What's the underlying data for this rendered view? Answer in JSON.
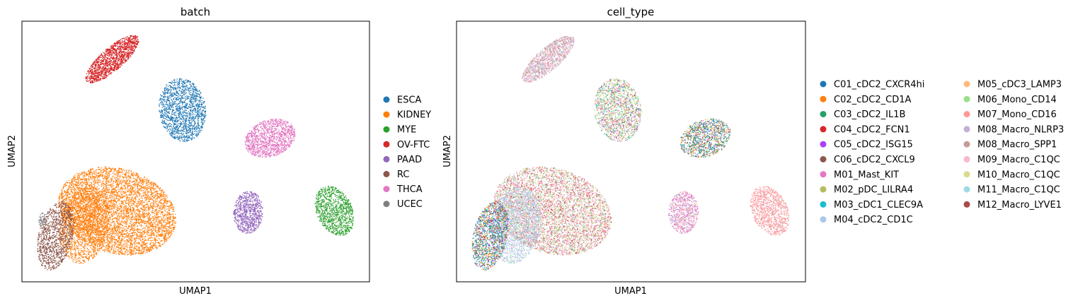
{
  "chart_data": [
    {
      "type": "scatter",
      "title": "batch",
      "xlabel": "UMAP1",
      "ylabel": "UMAP2",
      "xticks": [],
      "yticks": [],
      "grid": false,
      "legend_position": "right",
      "legend_columns": 1,
      "legend": [
        {
          "label": "ESCA",
          "color": "#1f77b4"
        },
        {
          "label": "KIDNEY",
          "color": "#ff7f0e"
        },
        {
          "label": "MYE",
          "color": "#2ca02c"
        },
        {
          "label": "OV-FTC",
          "color": "#d62728"
        },
        {
          "label": "PAAD",
          "color": "#9467bd"
        },
        {
          "label": "RC",
          "color": "#8c564b"
        },
        {
          "label": "THCA",
          "color": "#e377c2"
        },
        {
          "label": "UCEC",
          "color": "#7f7f7f"
        }
      ]
    },
    {
      "type": "scatter",
      "title": "cell_type",
      "xlabel": "UMAP1",
      "ylabel": "UMAP2",
      "xticks": [],
      "yticks": [],
      "grid": false,
      "legend_position": "right",
      "legend_columns": 2,
      "legend": [
        {
          "label": "C01_cDC2_CXCR4hi",
          "color": "#1f77b4"
        },
        {
          "label": "C02_cDC2_CD1A",
          "color": "#ff7f0e"
        },
        {
          "label": "C03_cDC2_IL1B",
          "color": "#279e68"
        },
        {
          "label": "C04_cDC2_FCN1",
          "color": "#d62728"
        },
        {
          "label": "C05_cDC2_ISG15",
          "color": "#aa40fc"
        },
        {
          "label": "C06_cDC2_CXCL9",
          "color": "#8c564b"
        },
        {
          "label": "M01_Mast_KIT",
          "color": "#e377c2"
        },
        {
          "label": "M02_pDC_LILRA4",
          "color": "#b5bd61"
        },
        {
          "label": "M03_cDC1_CLEC9A",
          "color": "#17becf"
        },
        {
          "label": "M04_cDC2_CD1C",
          "color": "#aec7e8"
        },
        {
          "label": "M05_cDC3_LAMP3",
          "color": "#ffbb78"
        },
        {
          "label": "M06_Mono_CD14",
          "color": "#98df8a"
        },
        {
          "label": "M07_Mono_CD16",
          "color": "#ff9896"
        },
        {
          "label": "M08_Macro_NLRP3",
          "color": "#c5b0d5"
        },
        {
          "label": "M08_Macro_SPP1",
          "color": "#c49c94"
        },
        {
          "label": "M09_Macro_C1QC",
          "color": "#f7b6d2"
        },
        {
          "label": "M10_Macro_C1QC",
          "color": "#dbdb8d"
        },
        {
          "label": "M11_Macro_C1QC",
          "color": "#9edae5"
        },
        {
          "label": "M12_Macro_LYVE1",
          "color": "#ad494a"
        }
      ]
    }
  ]
}
